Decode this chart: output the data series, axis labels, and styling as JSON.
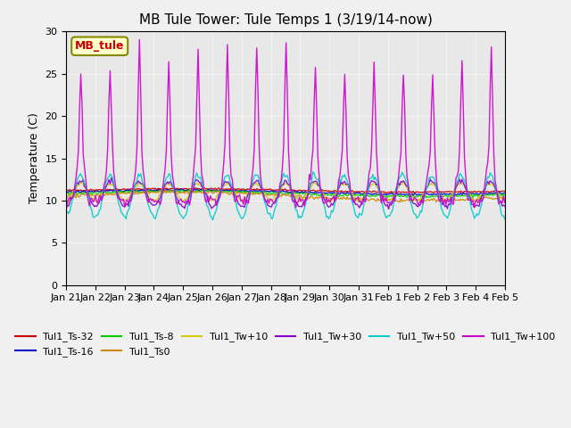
{
  "title": "MB Tule Tower: Tule Temps 1 (3/19/14-now)",
  "ylabel": "Temperature (C)",
  "ylim": [
    0,
    30
  ],
  "yticks": [
    0,
    5,
    10,
    15,
    20,
    25,
    30
  ],
  "xlabel_dates": [
    "Jan 21",
    "Jan 22",
    "Jan 23",
    "Jan 24",
    "Jan 25",
    "Jan 26",
    "Jan 27",
    "Jan 28",
    "Jan 29",
    "Jan 30",
    "Jan 31",
    "Feb 1",
    "Feb 2",
    "Feb 3",
    "Feb 4",
    "Feb 5"
  ],
  "legend_label": "MB_tule",
  "series": [
    {
      "label": "Tul1_Ts-32",
      "color": "#cc0000"
    },
    {
      "label": "Tul1_Ts-16",
      "color": "#0000cc"
    },
    {
      "label": "Tul1_Ts-8",
      "color": "#00cc00"
    },
    {
      "label": "Tul1_Ts0",
      "color": "#cc8800"
    },
    {
      "label": "Tul1_Tw+10",
      "color": "#cccc00"
    },
    {
      "label": "Tul1_Tw+30",
      "color": "#8800cc"
    },
    {
      "label": "Tul1_Tw+50",
      "color": "#00cccc"
    },
    {
      "label": "Tul1_Tw+100",
      "color": "#cc00cc"
    }
  ],
  "fig_facecolor": "#f0f0f0",
  "ax_facecolor": "#e8e8e8"
}
